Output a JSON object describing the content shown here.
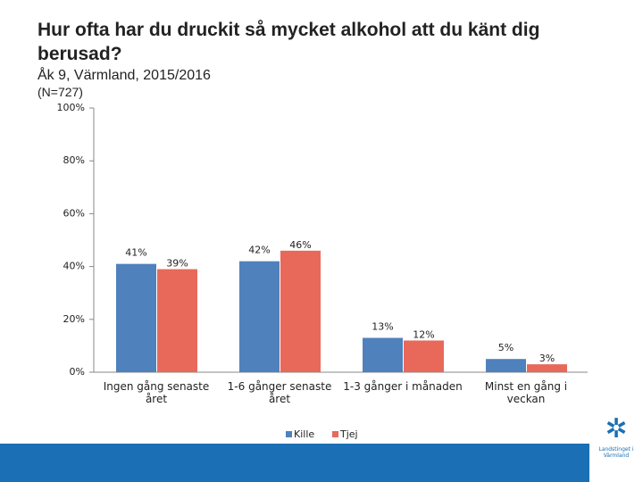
{
  "title": "Hur ofta har du druckit så mycket alkohol att du känt dig berusad?",
  "subtitle": "Åk 9, Värmland, 2015/2016",
  "note": "(N=727)",
  "logo": "Landstinget i Värmland",
  "chart_data": {
    "type": "bar",
    "categories": [
      "Ingen gång senaste året",
      "1-6 gånger senaste året",
      "1-3 gånger i månaden",
      "Minst en gång i veckan"
    ],
    "series": [
      {
        "name": "Kille",
        "color": "#4f81bd",
        "values": [
          41,
          42,
          13,
          5
        ],
        "value_labels": [
          "41%",
          "42%",
          "13%",
          "5%"
        ]
      },
      {
        "name": "Tjej",
        "color": "#e8695a",
        "values": [
          39,
          46,
          12,
          3
        ],
        "value_labels": [
          "39%",
          "46%",
          "12%",
          "3%"
        ]
      }
    ],
    "ylim": [
      0,
      100
    ],
    "yticks": [
      {
        "value": 0,
        "label": "0%"
      },
      {
        "value": 20,
        "label": "20%"
      },
      {
        "value": 40,
        "label": "40%"
      },
      {
        "value": 60,
        "label": "60%"
      },
      {
        "value": 80,
        "label": "80%"
      },
      {
        "value": 100,
        "label": "100%"
      }
    ],
    "legend": "bottom"
  }
}
